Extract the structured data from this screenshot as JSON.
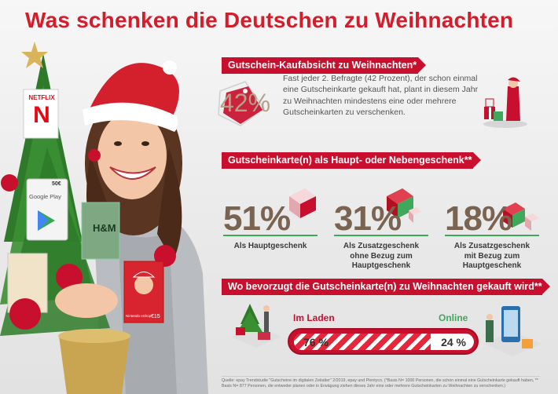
{
  "title": "Was schenken die Deutschen zu Weihnachten",
  "hero": {
    "netflix_label": "NETFLIX",
    "netflix_logo": "N",
    "gplay_value": "50€",
    "gplay_label": "Google Play",
    "hm_label": "H&M",
    "nintendo_value": "€15",
    "nintendo_label": "Nintendo eShop"
  },
  "section1": {
    "heading": "Gutschein-Kaufabsicht zu Weihnachten*",
    "percent": "42%",
    "text": "Fast jeder 2. Befragte (42 Prozent), der schon einmal eine Gutscheinkarte gekauft hat, plant in diesem Jahr zu Weihnachten mindestens eine oder mehrere Gutscheinkarten zu verschenken."
  },
  "section2": {
    "heading": "Gutscheinkarte(n) als Haupt- oder Nebengeschenk**",
    "stats": [
      {
        "value": "51%",
        "label": "Als Hauptgeschenk"
      },
      {
        "value": "31%",
        "label": "Als Zusatzgeschenk ohne Bezug zum Hauptgeschenk"
      },
      {
        "value": "18%",
        "label": "Als Zusatzgeschenk mit Bezug zum Hauptgeschenk"
      }
    ]
  },
  "section3": {
    "heading": "Wo bevorzugt die Gutscheinkarte(n) zu Weihnachten gekauft wird**",
    "store_label": "Im Laden",
    "online_label": "Online",
    "store_value": "76 %",
    "online_value": "24 %",
    "store_share": 0.76
  },
  "footnote": "Quelle: epay Trendstudie \"Gutscheine im digitalen Zeitalter\" 2/2019, epay und Plentyco, (*Basis N= 1000 Personen, die schon einmal eine Gutscheinkarte gekauft haben, ** Basis N= 877 Personen, die entweder planen oder in Erwägung ziehen dieses Jahr eine oder mehrere Gutscheinkarten zu Weihnachten zu verschenken.)",
  "colors": {
    "brand_red": "#c8102e",
    "stat_brown": "#7a6350",
    "accent_green": "#3fa85a"
  }
}
